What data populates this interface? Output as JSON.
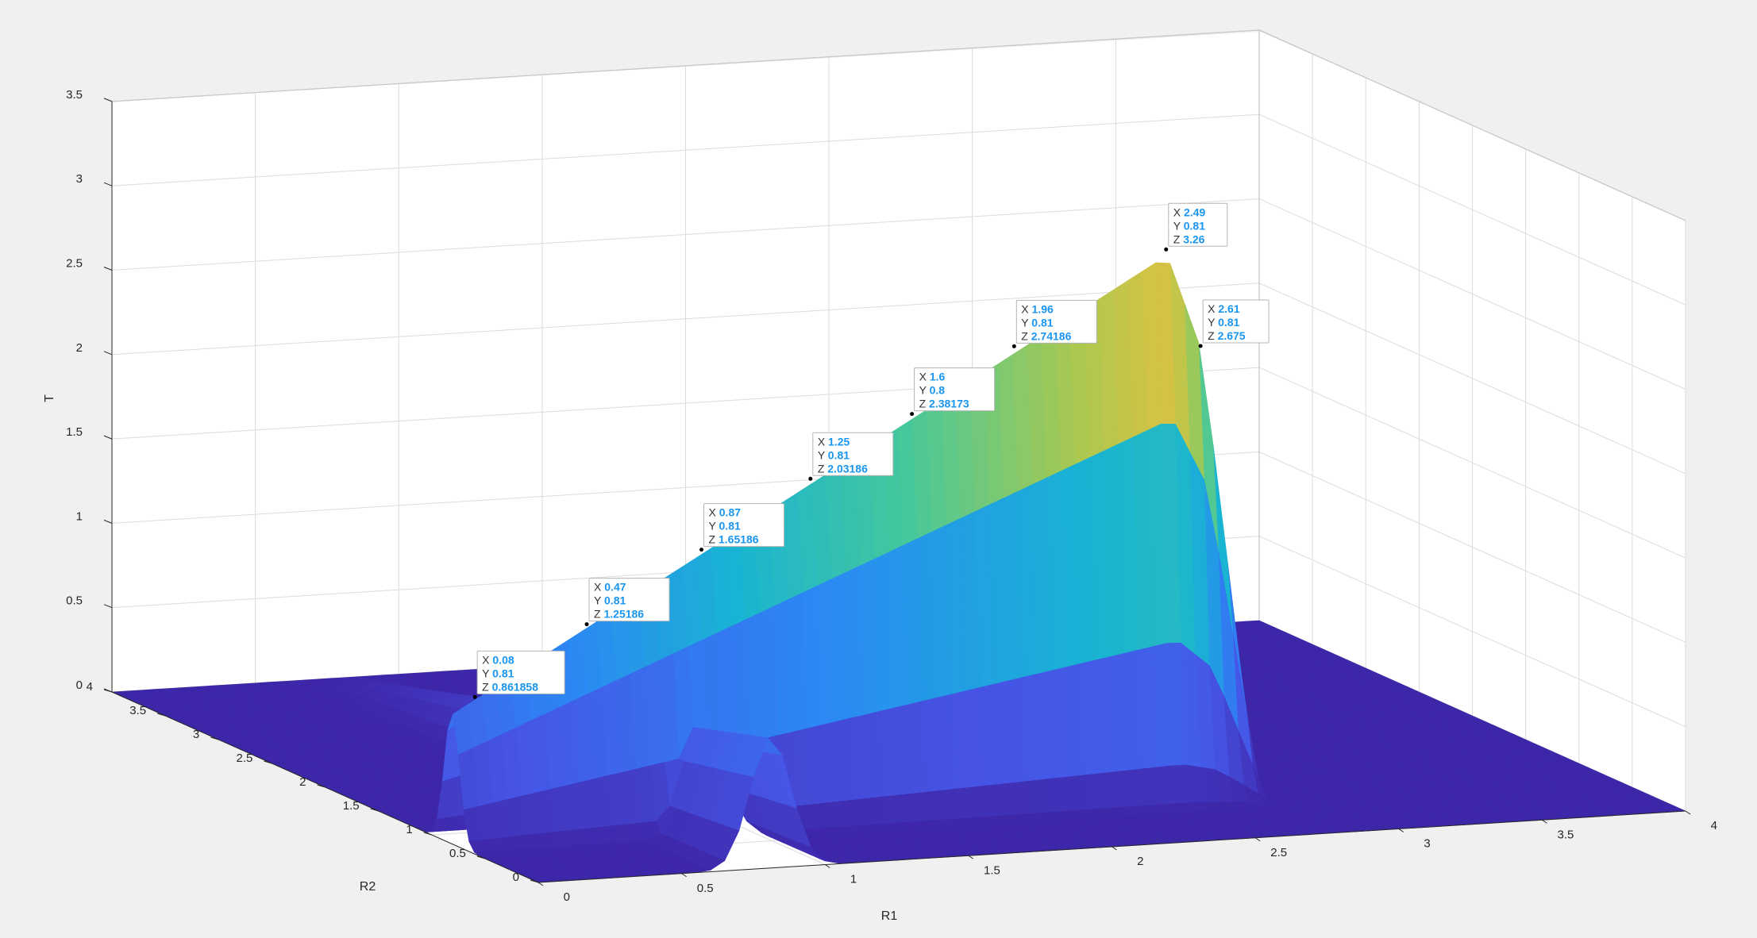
{
  "colors": {
    "figure_background": "#f0f0f0",
    "axes_background": "#ffffff",
    "grid": "#dcdcdc",
    "box_edge": "#c8c8c8",
    "axis_line": "#262626",
    "datatip_value": "#1a95ef",
    "colormap": "parula"
  },
  "chart_data": {
    "type": "surface",
    "title": "",
    "xlabel": "R1",
    "ylabel": "R2",
    "zlabel": "T",
    "xlim": [
      0,
      4
    ],
    "ylim": [
      0,
      4
    ],
    "zlim": [
      0,
      3.5
    ],
    "grid": true,
    "box": true,
    "colormap": "parula",
    "x_ticks": [
      "0",
      "0.5",
      "1",
      "1.5",
      "2",
      "2.5",
      "3",
      "3.5",
      "4"
    ],
    "y_ticks": [
      "0",
      "0.5",
      "1",
      "1.5",
      "2",
      "2.5",
      "3",
      "3.5",
      "4"
    ],
    "z_ticks": [
      "0",
      "0.5",
      "1",
      "1.5",
      "2",
      "2.5",
      "3",
      "3.5"
    ],
    "ridges": [
      {
        "along": "R1",
        "at_R2": 0.81,
        "path": [
          [
            0.0,
            0.78
          ],
          [
            2.49,
            3.26
          ],
          [
            2.61,
            2.675
          ],
          [
            2.8,
            0.0
          ]
        ]
      },
      {
        "along": "R2",
        "at_R1": 0.81,
        "path": [
          [
            0.0,
            0.78
          ],
          [
            4.0,
            0.0
          ]
        ]
      }
    ],
    "data_tips": [
      {
        "X": "0.08",
        "Y": "0.81",
        "Z": "0.861858"
      },
      {
        "X": "0.47",
        "Y": "0.81",
        "Z": "1.25186"
      },
      {
        "X": "0.87",
        "Y": "0.81",
        "Z": "1.65186"
      },
      {
        "X": "1.25",
        "Y": "0.81",
        "Z": "2.03186"
      },
      {
        "X": "1.6",
        "Y": "0.8",
        "Z": "2.38173"
      },
      {
        "X": "1.96",
        "Y": "0.81",
        "Z": "2.74186"
      },
      {
        "X": "2.49",
        "Y": "0.81",
        "Z": "3.26"
      },
      {
        "X": "2.61",
        "Y": "0.81",
        "Z": "2.675"
      }
    ]
  }
}
